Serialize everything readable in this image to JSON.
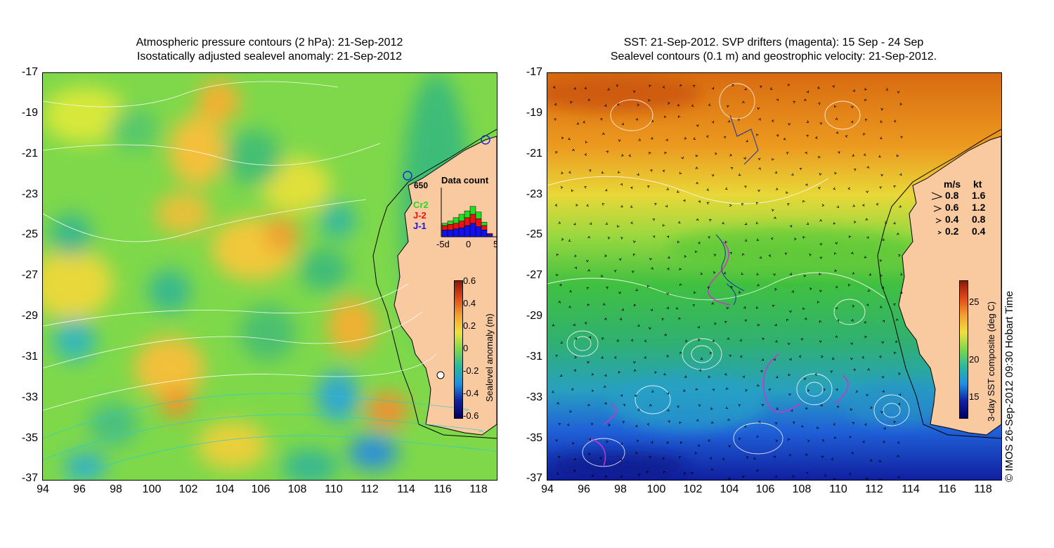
{
  "left_panel": {
    "title_line1": "Atmospheric pressure contours (2 hPa): 21-Sep-2012",
    "title_line2": "Isostatically adjusted sealevel anomaly: 21-Sep-2012",
    "station_label": "650",
    "data_count": {
      "title": "Data count",
      "legend": [
        {
          "name": "Cr2",
          "color": "#22dd22"
        },
        {
          "name": "J-2",
          "color": "#ee1111"
        },
        {
          "name": "J-1",
          "color": "#1111ee"
        }
      ],
      "x_labels": [
        "-5d",
        "0",
        "5"
      ]
    },
    "colorbar": {
      "label": "Sealevel anomaly (m)",
      "ticks": [
        "0.6",
        "0.4",
        "0.2",
        "0",
        "-0.2",
        "-0.4",
        "-0.6"
      ]
    }
  },
  "right_panel": {
    "title_line1": "SST: 21-Sep-2012. SVP drifters (magenta): 15 Sep - 24 Sep",
    "title_line2": "Sealevel contours (0.1 m) and geostrophic velocity: 21-Sep-2012.",
    "speed_legend": {
      "header_ms": "m/s",
      "header_kt": "kt",
      "rows": [
        {
          "ms": "0.8",
          "kt": "1.6"
        },
        {
          "ms": "0.6",
          "kt": "1.2"
        },
        {
          "ms": "0.4",
          "kt": "0.8"
        },
        {
          "ms": "0.2",
          "kt": "0.4"
        }
      ]
    },
    "colorbar": {
      "label": "3-day SST composite (deg C)",
      "ticks": [
        "25",
        "20",
        "15"
      ]
    },
    "credit": "© IMOS 26-Sep-2012 09:30 Hobart Time"
  },
  "axes": {
    "y_ticks": [
      "-17",
      "-19",
      "-21",
      "-23",
      "-25",
      "-27",
      "-29",
      "-31",
      "-33",
      "-35",
      "-37"
    ],
    "x_ticks": [
      "94",
      "96",
      "98",
      "100",
      "102",
      "104",
      "106",
      "108",
      "110",
      "112",
      "114",
      "116",
      "118"
    ]
  },
  "colors": {
    "land": "#f9c9a0",
    "coast": "#000000",
    "contour": "#ffffff",
    "drifter": "#cc33cc"
  }
}
